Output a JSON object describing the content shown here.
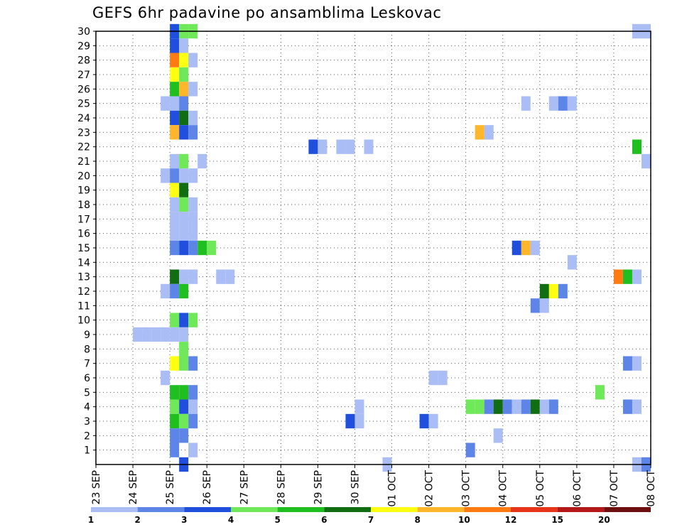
{
  "chart_data": {
    "type": "heatmap",
    "title": "GEFS 6hr padavine po ansamblima Leskovac",
    "xlabel": "",
    "ylabel": "",
    "x_ticks": [
      "23 SEP",
      "24 SEP",
      "25 SEP",
      "26 SEP",
      "27 SEP",
      "28 SEP",
      "29 SEP",
      "30 SEP",
      "01 OCT",
      "02 OCT",
      "03 OCT",
      "04 OCT",
      "05 OCT",
      "06 OCT",
      "07 OCT",
      "08 OCT"
    ],
    "y_ticks": [
      1,
      2,
      3,
      4,
      5,
      6,
      7,
      8,
      9,
      10,
      11,
      12,
      13,
      14,
      15,
      16,
      17,
      18,
      19,
      20,
      21,
      22,
      23,
      24,
      25,
      26,
      27,
      28,
      29,
      30
    ],
    "ylim": [
      0,
      30
    ],
    "time_steps_per_day": 4,
    "grid": true,
    "legend": {
      "placement": "bottom",
      "labels": [
        "1",
        "2",
        "3",
        "4",
        "5",
        "6",
        "7",
        "8",
        "10",
        "12",
        "15",
        "20"
      ],
      "colors": [
        "#aabdf5",
        "#5d85e8",
        "#1f4fdc",
        "#6fe85a",
        "#1fbf1f",
        "#116d11",
        "#ffff11",
        "#ffb62a",
        "#ff7a10",
        "#e8341a",
        "#b41818",
        "#6e1010"
      ]
    },
    "cells": [
      {
        "t": "25 SEP 00",
        "member": 30,
        "value": 3
      },
      {
        "t": "25 SEP 06",
        "member": 30,
        "value": 4
      },
      {
        "t": "25 SEP 12",
        "member": 30,
        "value": 4
      },
      {
        "t": "25 SEP 00",
        "member": 29,
        "value": 3
      },
      {
        "t": "25 SEP 06",
        "member": 29,
        "value": 1
      },
      {
        "t": "25 SEP 00",
        "member": 28,
        "value": 10
      },
      {
        "t": "25 SEP 06",
        "member": 28,
        "value": 7
      },
      {
        "t": "25 SEP 12",
        "member": 28,
        "value": 1
      },
      {
        "t": "25 SEP 00",
        "member": 27,
        "value": 7
      },
      {
        "t": "25 SEP 06",
        "member": 27,
        "value": 4
      },
      {
        "t": "25 SEP 00",
        "member": 26,
        "value": 5
      },
      {
        "t": "25 SEP 06",
        "member": 26,
        "value": 8
      },
      {
        "t": "25 SEP 12",
        "member": 26,
        "value": 1
      },
      {
        "t": "24 SEP 18",
        "member": 25,
        "value": 1
      },
      {
        "t": "25 SEP 00",
        "member": 25,
        "value": 1
      },
      {
        "t": "25 SEP 06",
        "member": 25,
        "value": 2
      },
      {
        "t": "25 SEP 00",
        "member": 24,
        "value": 3
      },
      {
        "t": "25 SEP 06",
        "member": 24,
        "value": 6
      },
      {
        "t": "25 SEP 12",
        "member": 24,
        "value": 1
      },
      {
        "t": "25 SEP 00",
        "member": 23,
        "value": 8
      },
      {
        "t": "25 SEP 06",
        "member": 23,
        "value": 3
      },
      {
        "t": "25 SEP 12",
        "member": 23,
        "value": 2
      },
      {
        "t": "25 SEP 00",
        "member": 21,
        "value": 1
      },
      {
        "t": "25 SEP 06",
        "member": 21,
        "value": 4
      },
      {
        "t": "25 SEP 18",
        "member": 21,
        "value": 1
      },
      {
        "t": "24 SEP 18",
        "member": 20,
        "value": 1
      },
      {
        "t": "25 SEP 00",
        "member": 20,
        "value": 2
      },
      {
        "t": "25 SEP 06",
        "member": 20,
        "value": 1
      },
      {
        "t": "25 SEP 12",
        "member": 20,
        "value": 1
      },
      {
        "t": "25 SEP 00",
        "member": 19,
        "value": 7
      },
      {
        "t": "25 SEP 06",
        "member": 19,
        "value": 6
      },
      {
        "t": "25 SEP 00",
        "member": 18,
        "value": 1
      },
      {
        "t": "25 SEP 06",
        "member": 18,
        "value": 4
      },
      {
        "t": "25 SEP 12",
        "member": 18,
        "value": 1
      },
      {
        "t": "25 SEP 00",
        "member": 17,
        "value": 1
      },
      {
        "t": "25 SEP 06",
        "member": 17,
        "value": 1
      },
      {
        "t": "25 SEP 12",
        "member": 17,
        "value": 1
      },
      {
        "t": "25 SEP 00",
        "member": 16,
        "value": 1
      },
      {
        "t": "25 SEP 06",
        "member": 16,
        "value": 1
      },
      {
        "t": "25 SEP 12",
        "member": 16,
        "value": 1
      },
      {
        "t": "25 SEP 00",
        "member": 15,
        "value": 2
      },
      {
        "t": "25 SEP 06",
        "member": 15,
        "value": 3
      },
      {
        "t": "25 SEP 12",
        "member": 15,
        "value": 2
      },
      {
        "t": "25 SEP 18",
        "member": 15,
        "value": 5
      },
      {
        "t": "26 SEP 00",
        "member": 15,
        "value": 4
      },
      {
        "t": "25 SEP 00",
        "member": 13,
        "value": 6
      },
      {
        "t": "25 SEP 06",
        "member": 13,
        "value": 1
      },
      {
        "t": "25 SEP 12",
        "member": 13,
        "value": 1
      },
      {
        "t": "26 SEP 06",
        "member": 13,
        "value": 1
      },
      {
        "t": "26 SEP 12",
        "member": 13,
        "value": 1
      },
      {
        "t": "24 SEP 18",
        "member": 12,
        "value": 1
      },
      {
        "t": "25 SEP 00",
        "member": 12,
        "value": 2
      },
      {
        "t": "25 SEP 06",
        "member": 12,
        "value": 5
      },
      {
        "t": "25 SEP 00",
        "member": 10,
        "value": 4
      },
      {
        "t": "25 SEP 06",
        "member": 10,
        "value": 3
      },
      {
        "t": "25 SEP 12",
        "member": 10,
        "value": 4
      },
      {
        "t": "24 SEP 00",
        "member": 9,
        "value": 1
      },
      {
        "t": "24 SEP 06",
        "member": 9,
        "value": 1
      },
      {
        "t": "24 SEP 12",
        "member": 9,
        "value": 1
      },
      {
        "t": "24 SEP 18",
        "member": 9,
        "value": 1
      },
      {
        "t": "25 SEP 00",
        "member": 9,
        "value": 1
      },
      {
        "t": "25 SEP 06",
        "member": 9,
        "value": 1
      },
      {
        "t": "25 SEP 06",
        "member": 8,
        "value": 4
      },
      {
        "t": "25 SEP 00",
        "member": 7,
        "value": 7
      },
      {
        "t": "25 SEP 06",
        "member": 7,
        "value": 4
      },
      {
        "t": "25 SEP 12",
        "member": 7,
        "value": 2
      },
      {
        "t": "24 SEP 18",
        "member": 6,
        "value": 1
      },
      {
        "t": "25 SEP 00",
        "member": 5,
        "value": 5
      },
      {
        "t": "25 SEP 06",
        "member": 5,
        "value": 5
      },
      {
        "t": "25 SEP 12",
        "member": 5,
        "value": 2
      },
      {
        "t": "25 SEP 00",
        "member": 4,
        "value": 4
      },
      {
        "t": "25 SEP 06",
        "member": 4,
        "value": 3
      },
      {
        "t": "25 SEP 12",
        "member": 4,
        "value": 1
      },
      {
        "t": "25 SEP 00",
        "member": 3,
        "value": 5
      },
      {
        "t": "25 SEP 06",
        "member": 3,
        "value": 4
      },
      {
        "t": "25 SEP 12",
        "member": 3,
        "value": 2
      },
      {
        "t": "25 SEP 00",
        "member": 2,
        "value": 2
      },
      {
        "t": "25 SEP 06",
        "member": 2,
        "value": 2
      },
      {
        "t": "25 SEP 00",
        "member": 1,
        "value": 2
      },
      {
        "t": "25 SEP 12",
        "member": 1,
        "value": 1
      },
      {
        "t": "25 SEP 06",
        "member": 0,
        "value": 3
      },
      {
        "t": "28 SEP 18",
        "member": 22,
        "value": 3
      },
      {
        "t": "29 SEP 00",
        "member": 22,
        "value": 1
      },
      {
        "t": "29 SEP 12",
        "member": 22,
        "value": 1
      },
      {
        "t": "29 SEP 18",
        "member": 22,
        "value": 1
      },
      {
        "t": "30 SEP 06",
        "member": 22,
        "value": 1
      },
      {
        "t": "29 SEP 18",
        "member": 3,
        "value": 3
      },
      {
        "t": "30 SEP 00",
        "member": 3,
        "value": 1
      },
      {
        "t": "30 SEP 00",
        "member": 4,
        "value": 1
      },
      {
        "t": "30 SEP 18",
        "member": 0,
        "value": 1
      },
      {
        "t": "01 OCT 18",
        "member": 3,
        "value": 3
      },
      {
        "t": "02 OCT 00",
        "member": 3,
        "value": 1
      },
      {
        "t": "02 OCT 00",
        "member": 6,
        "value": 1
      },
      {
        "t": "02 OCT 06",
        "member": 6,
        "value": 1
      },
      {
        "t": "03 OCT 00",
        "member": 4,
        "value": 4
      },
      {
        "t": "03 OCT 06",
        "member": 4,
        "value": 4
      },
      {
        "t": "03 OCT 12",
        "member": 4,
        "value": 2
      },
      {
        "t": "03 OCT 18",
        "member": 4,
        "value": 6
      },
      {
        "t": "04 OCT 00",
        "member": 4,
        "value": 2
      },
      {
        "t": "04 OCT 06",
        "member": 4,
        "value": 1
      },
      {
        "t": "04 OCT 12",
        "member": 4,
        "value": 2
      },
      {
        "t": "04 OCT 18",
        "member": 4,
        "value": 6
      },
      {
        "t": "05 OCT 00",
        "member": 4,
        "value": 1
      },
      {
        "t": "05 OCT 06",
        "member": 4,
        "value": 2
      },
      {
        "t": "03 OCT 00",
        "member": 1,
        "value": 2
      },
      {
        "t": "03 OCT 18",
        "member": 2,
        "value": 1
      },
      {
        "t": "03 OCT 06",
        "member": 23,
        "value": 8
      },
      {
        "t": "03 OCT 12",
        "member": 23,
        "value": 1
      },
      {
        "t": "04 OCT 06",
        "member": 15,
        "value": 3
      },
      {
        "t": "04 OCT 12",
        "member": 15,
        "value": 8
      },
      {
        "t": "04 OCT 18",
        "member": 15,
        "value": 1
      },
      {
        "t": "04 OCT 12",
        "member": 25,
        "value": 1
      },
      {
        "t": "04 OCT 18",
        "member": 11,
        "value": 2
      },
      {
        "t": "05 OCT 00",
        "member": 11,
        "value": 1
      },
      {
        "t": "05 OCT 00",
        "member": 12,
        "value": 6
      },
      {
        "t": "05 OCT 06",
        "member": 12,
        "value": 7
      },
      {
        "t": "05 OCT 12",
        "member": 12,
        "value": 2
      },
      {
        "t": "05 OCT 06",
        "member": 25,
        "value": 1
      },
      {
        "t": "05 OCT 12",
        "member": 25,
        "value": 2
      },
      {
        "t": "05 OCT 18",
        "member": 25,
        "value": 1
      },
      {
        "t": "05 OCT 18",
        "member": 14,
        "value": 1
      },
      {
        "t": "06 OCT 12",
        "member": 5,
        "value": 4
      },
      {
        "t": "07 OCT 00",
        "member": 13,
        "value": 10
      },
      {
        "t": "07 OCT 06",
        "member": 13,
        "value": 5
      },
      {
        "t": "07 OCT 12",
        "member": 13,
        "value": 1
      },
      {
        "t": "07 OCT 06",
        "member": 7,
        "value": 2
      },
      {
        "t": "07 OCT 12",
        "member": 7,
        "value": 1
      },
      {
        "t": "07 OCT 06",
        "member": 4,
        "value": 2
      },
      {
        "t": "07 OCT 12",
        "member": 4,
        "value": 1
      },
      {
        "t": "07 OCT 12",
        "member": 22,
        "value": 5
      },
      {
        "t": "07 OCT 18",
        "member": 21,
        "value": 1
      },
      {
        "t": "07 OCT 12",
        "member": 30,
        "value": 1
      },
      {
        "t": "07 OCT 18",
        "member": 30,
        "value": 1
      },
      {
        "t": "07 OCT 12",
        "member": 0,
        "value": 1
      },
      {
        "t": "07 OCT 18",
        "member": 0,
        "value": 2
      }
    ]
  }
}
